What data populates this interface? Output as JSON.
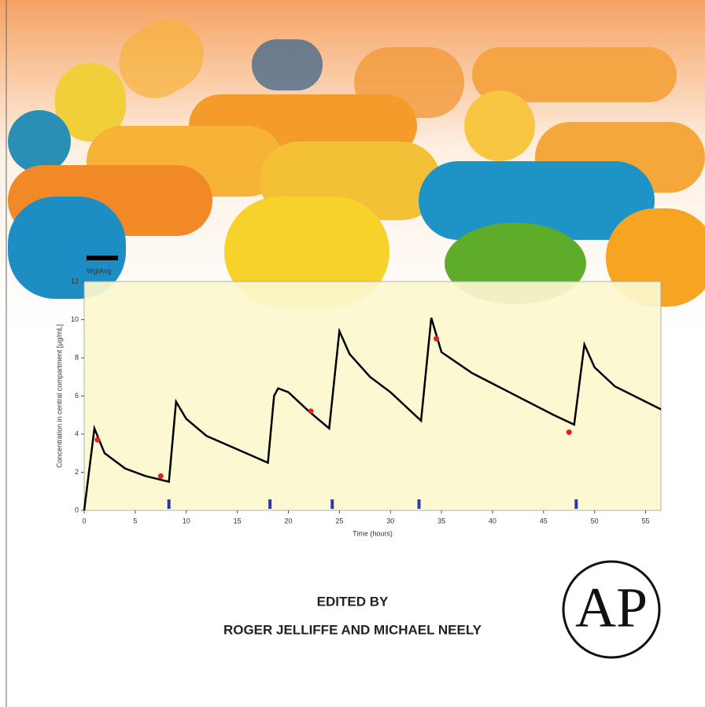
{
  "chart_data": {
    "type": "line",
    "y_label": "Concentration in central compartment [µg/mL]",
    "x_label": "Time (hours)",
    "xlim": [
      0,
      56.5
    ],
    "ylim": [
      0,
      12
    ],
    "xticks": [
      0,
      5,
      10,
      15,
      20,
      25,
      30,
      35,
      40,
      45,
      50,
      55
    ],
    "yticks": [
      0,
      2,
      4,
      6,
      8,
      10,
      12
    ],
    "series": [
      {
        "name": "WgtAvg",
        "color": "#000000",
        "x": [
          0,
          1,
          2,
          4,
          6,
          8.3,
          9,
          10,
          12,
          15,
          18,
          18.6,
          19,
          20,
          22,
          24,
          25,
          26,
          28,
          30,
          33,
          34,
          35,
          38,
          42,
          46,
          48,
          49,
          50,
          52,
          56.5
        ],
        "values": [
          0,
          4.3,
          3.0,
          2.2,
          1.8,
          1.5,
          5.7,
          4.8,
          3.9,
          3.2,
          2.5,
          6.0,
          6.4,
          6.2,
          5.2,
          4.3,
          9.4,
          8.2,
          7.0,
          6.2,
          4.7,
          10.1,
          8.3,
          7.2,
          6.1,
          5.0,
          4.5,
          8.7,
          7.5,
          6.5,
          5.3
        ]
      }
    ],
    "observed": {
      "color": "#e02020",
      "x": [
        1.3,
        7.5,
        22.2,
        34.5,
        47.5
      ],
      "values": [
        3.7,
        1.8,
        5.2,
        9.0,
        4.1
      ]
    },
    "doses": {
      "color": "#2a3aa8",
      "x": [
        8.3,
        18.2,
        24.3,
        32.8,
        48.2
      ]
    }
  },
  "cover": {
    "edited_by": "EDITED BY",
    "editors": "ROGER JELLIFFE AND MICHAEL NEELY",
    "logo": "AP"
  }
}
